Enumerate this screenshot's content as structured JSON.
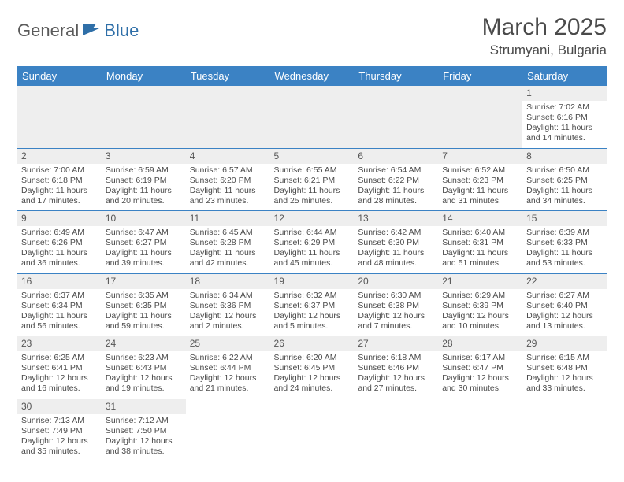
{
  "logo": {
    "general": "General",
    "blue": "Blue"
  },
  "title": {
    "month": "March 2025",
    "location": "Strumyani, Bulgaria"
  },
  "colors": {
    "header_bg": "#3b82c4",
    "header_text": "#ffffff",
    "rule": "#3b82c4",
    "daynum_bg": "#eeeeee"
  },
  "weekdays": [
    "Sunday",
    "Monday",
    "Tuesday",
    "Wednesday",
    "Thursday",
    "Friday",
    "Saturday"
  ],
  "weeks": [
    [
      null,
      null,
      null,
      null,
      null,
      null,
      {
        "n": "1",
        "sr": "Sunrise: 7:02 AM",
        "ss": "Sunset: 6:16 PM",
        "dl": "Daylight: 11 hours and 14 minutes."
      }
    ],
    [
      {
        "n": "2",
        "sr": "Sunrise: 7:00 AM",
        "ss": "Sunset: 6:18 PM",
        "dl": "Daylight: 11 hours and 17 minutes."
      },
      {
        "n": "3",
        "sr": "Sunrise: 6:59 AM",
        "ss": "Sunset: 6:19 PM",
        "dl": "Daylight: 11 hours and 20 minutes."
      },
      {
        "n": "4",
        "sr": "Sunrise: 6:57 AM",
        "ss": "Sunset: 6:20 PM",
        "dl": "Daylight: 11 hours and 23 minutes."
      },
      {
        "n": "5",
        "sr": "Sunrise: 6:55 AM",
        "ss": "Sunset: 6:21 PM",
        "dl": "Daylight: 11 hours and 25 minutes."
      },
      {
        "n": "6",
        "sr": "Sunrise: 6:54 AM",
        "ss": "Sunset: 6:22 PM",
        "dl": "Daylight: 11 hours and 28 minutes."
      },
      {
        "n": "7",
        "sr": "Sunrise: 6:52 AM",
        "ss": "Sunset: 6:23 PM",
        "dl": "Daylight: 11 hours and 31 minutes."
      },
      {
        "n": "8",
        "sr": "Sunrise: 6:50 AM",
        "ss": "Sunset: 6:25 PM",
        "dl": "Daylight: 11 hours and 34 minutes."
      }
    ],
    [
      {
        "n": "9",
        "sr": "Sunrise: 6:49 AM",
        "ss": "Sunset: 6:26 PM",
        "dl": "Daylight: 11 hours and 36 minutes."
      },
      {
        "n": "10",
        "sr": "Sunrise: 6:47 AM",
        "ss": "Sunset: 6:27 PM",
        "dl": "Daylight: 11 hours and 39 minutes."
      },
      {
        "n": "11",
        "sr": "Sunrise: 6:45 AM",
        "ss": "Sunset: 6:28 PM",
        "dl": "Daylight: 11 hours and 42 minutes."
      },
      {
        "n": "12",
        "sr": "Sunrise: 6:44 AM",
        "ss": "Sunset: 6:29 PM",
        "dl": "Daylight: 11 hours and 45 minutes."
      },
      {
        "n": "13",
        "sr": "Sunrise: 6:42 AM",
        "ss": "Sunset: 6:30 PM",
        "dl": "Daylight: 11 hours and 48 minutes."
      },
      {
        "n": "14",
        "sr": "Sunrise: 6:40 AM",
        "ss": "Sunset: 6:31 PM",
        "dl": "Daylight: 11 hours and 51 minutes."
      },
      {
        "n": "15",
        "sr": "Sunrise: 6:39 AM",
        "ss": "Sunset: 6:33 PM",
        "dl": "Daylight: 11 hours and 53 minutes."
      }
    ],
    [
      {
        "n": "16",
        "sr": "Sunrise: 6:37 AM",
        "ss": "Sunset: 6:34 PM",
        "dl": "Daylight: 11 hours and 56 minutes."
      },
      {
        "n": "17",
        "sr": "Sunrise: 6:35 AM",
        "ss": "Sunset: 6:35 PM",
        "dl": "Daylight: 11 hours and 59 minutes."
      },
      {
        "n": "18",
        "sr": "Sunrise: 6:34 AM",
        "ss": "Sunset: 6:36 PM",
        "dl": "Daylight: 12 hours and 2 minutes."
      },
      {
        "n": "19",
        "sr": "Sunrise: 6:32 AM",
        "ss": "Sunset: 6:37 PM",
        "dl": "Daylight: 12 hours and 5 minutes."
      },
      {
        "n": "20",
        "sr": "Sunrise: 6:30 AM",
        "ss": "Sunset: 6:38 PM",
        "dl": "Daylight: 12 hours and 7 minutes."
      },
      {
        "n": "21",
        "sr": "Sunrise: 6:29 AM",
        "ss": "Sunset: 6:39 PM",
        "dl": "Daylight: 12 hours and 10 minutes."
      },
      {
        "n": "22",
        "sr": "Sunrise: 6:27 AM",
        "ss": "Sunset: 6:40 PM",
        "dl": "Daylight: 12 hours and 13 minutes."
      }
    ],
    [
      {
        "n": "23",
        "sr": "Sunrise: 6:25 AM",
        "ss": "Sunset: 6:41 PM",
        "dl": "Daylight: 12 hours and 16 minutes."
      },
      {
        "n": "24",
        "sr": "Sunrise: 6:23 AM",
        "ss": "Sunset: 6:43 PM",
        "dl": "Daylight: 12 hours and 19 minutes."
      },
      {
        "n": "25",
        "sr": "Sunrise: 6:22 AM",
        "ss": "Sunset: 6:44 PM",
        "dl": "Daylight: 12 hours and 21 minutes."
      },
      {
        "n": "26",
        "sr": "Sunrise: 6:20 AM",
        "ss": "Sunset: 6:45 PM",
        "dl": "Daylight: 12 hours and 24 minutes."
      },
      {
        "n": "27",
        "sr": "Sunrise: 6:18 AM",
        "ss": "Sunset: 6:46 PM",
        "dl": "Daylight: 12 hours and 27 minutes."
      },
      {
        "n": "28",
        "sr": "Sunrise: 6:17 AM",
        "ss": "Sunset: 6:47 PM",
        "dl": "Daylight: 12 hours and 30 minutes."
      },
      {
        "n": "29",
        "sr": "Sunrise: 6:15 AM",
        "ss": "Sunset: 6:48 PM",
        "dl": "Daylight: 12 hours and 33 minutes."
      }
    ],
    [
      {
        "n": "30",
        "sr": "Sunrise: 7:13 AM",
        "ss": "Sunset: 7:49 PM",
        "dl": "Daylight: 12 hours and 35 minutes."
      },
      {
        "n": "31",
        "sr": "Sunrise: 7:12 AM",
        "ss": "Sunset: 7:50 PM",
        "dl": "Daylight: 12 hours and 38 minutes."
      },
      null,
      null,
      null,
      null,
      null
    ]
  ]
}
